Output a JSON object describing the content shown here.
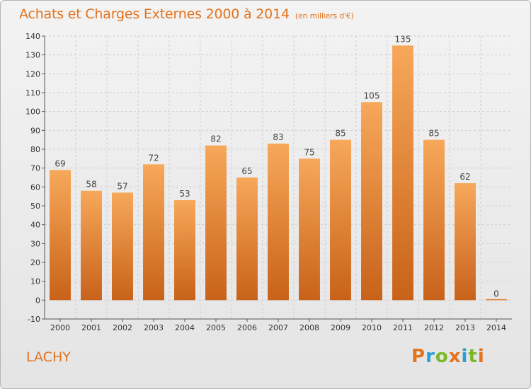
{
  "title": "Achats et Charges Externes 2000 à 2014",
  "subtitle": "(en milliers d'€)",
  "commune": "LACHY",
  "logo": {
    "letters": [
      "P",
      "r",
      "o",
      "x",
      "i",
      "t",
      "i"
    ],
    "colors": [
      "#e3731e",
      "#2a9fd6",
      "#7ab828",
      "#e3731e",
      "#2a9fd6",
      "#7ab828",
      "#e3731e"
    ]
  },
  "colors": {
    "bar_top": "#f7a85a",
    "bar_bottom": "#c8621a",
    "title": "#e3731e",
    "grid": "#cfcfcf"
  },
  "chart_data": {
    "type": "bar",
    "title": "Achats et Charges Externes 2000 à 2014",
    "subtitle": "(en milliers d'€)",
    "categories": [
      "2000",
      "2001",
      "2002",
      "2003",
      "2004",
      "2005",
      "2006",
      "2007",
      "2008",
      "2009",
      "2010",
      "2011",
      "2012",
      "2013",
      "2014"
    ],
    "values": [
      69,
      58,
      57,
      72,
      53,
      82,
      65,
      83,
      75,
      85,
      105,
      135,
      85,
      62,
      0
    ],
    "value_labels": [
      "69",
      "58",
      "57",
      "72",
      "53",
      "82",
      "65",
      "83",
      "75",
      "85",
      "105",
      "135",
      "85",
      "62",
      "0"
    ],
    "ylim": [
      -10,
      140
    ],
    "yticks": [
      -10,
      0,
      10,
      20,
      30,
      40,
      50,
      60,
      70,
      80,
      90,
      100,
      110,
      120,
      130,
      140
    ],
    "ytick_labels": [
      "-10",
      "0",
      "10",
      "20",
      "30",
      "40",
      "50",
      "60",
      "70",
      "80",
      "90",
      "100",
      "110",
      "120",
      "130",
      "140"
    ],
    "grid": true,
    "xlabel": "",
    "ylabel": ""
  }
}
